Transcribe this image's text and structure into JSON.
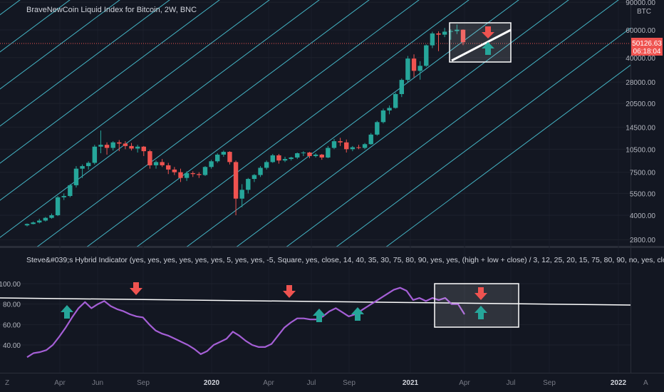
{
  "price_pane": {
    "title": "BraveNewCoin Liquid Index for Bitcoin, 2W, BNC",
    "currency_badge": "BTC",
    "price_scale_ticks": [
      "90000.00",
      "60000.00",
      "40000.00",
      "28000.00",
      "20500.00",
      "14500.00",
      "10500.00",
      "7500.00",
      "5500.00",
      "4000.00",
      "2800.00"
    ],
    "last_price": "50126.63",
    "countdown": "06:18:04",
    "colors": {
      "up": "#26a69a",
      "down": "#ef5350",
      "channel": "#4dd0e1",
      "badge": "#ef5350"
    }
  },
  "indicator_pane": {
    "title": "Steve&#039;s Hybrid Indicator (yes, yes, yes, yes, yes, yes, 5, yes, yes, -5, Square, yes, close, 14, 40, 35, 30, 75, 80, 90, yes, yes, (high + low + close) / 3, 12, 25, 20, 15, 75, 80, 90, no, yes, close, 14, 14, 3, 4, 25, 20, 10, 80, 85, 95, n",
    "scale_ticks": [
      "100.00",
      "80.00",
      "60.00",
      "40.00"
    ],
    "colors": {
      "line": "#a55fd6"
    }
  },
  "time_axis": {
    "labels": [
      "Apr",
      "Jun",
      "Sep",
      "2020",
      "Apr",
      "Jul",
      "Sep",
      "2021",
      "Apr",
      "Jul",
      "Sep",
      "2022"
    ],
    "left_button": "Z",
    "right_button": "A"
  },
  "chart_data": [
    {
      "type": "candlestick",
      "title": "BraveNewCoin Liquid Index for Bitcoin, 2W, BNC",
      "scale": "log",
      "ylim": [
        2500,
        95000
      ],
      "x_range": [
        "2019-02",
        "2022-02"
      ],
      "candles": [
        [
          3450,
          3550,
          3400,
          3520
        ],
        [
          3520,
          3650,
          3500,
          3600
        ],
        [
          3600,
          3800,
          3550,
          3700
        ],
        [
          3700,
          3900,
          3650,
          3850
        ],
        [
          3850,
          4100,
          3800,
          4000
        ],
        [
          4000,
          5300,
          3950,
          5200
        ],
        [
          5200,
          5500,
          5000,
          5300
        ],
        [
          5300,
          6300,
          5200,
          6200
        ],
        [
          6200,
          8200,
          6000,
          7900
        ],
        [
          7900,
          8400,
          6900,
          8200
        ],
        [
          8200,
          8800,
          7800,
          8600
        ],
        [
          8600,
          11200,
          8400,
          10900
        ],
        [
          10900,
          13800,
          9900,
          11200
        ],
        [
          11200,
          11600,
          9700,
          10700
        ],
        [
          10700,
          11800,
          10300,
          11600
        ],
        [
          11600,
          12000,
          10200,
          11400
        ],
        [
          11400,
          11800,
          10500,
          11000
        ],
        [
          11000,
          11500,
          10300,
          10600
        ],
        [
          10600,
          11200,
          10000,
          10900
        ],
        [
          10900,
          11000,
          9500,
          10200
        ],
        [
          10200,
          10400,
          7900,
          8300
        ],
        [
          8300,
          8900,
          7900,
          8700
        ],
        [
          8700,
          9100,
          8100,
          8300
        ],
        [
          8300,
          8600,
          7300,
          7800
        ],
        [
          7800,
          8100,
          7200,
          7500
        ],
        [
          7500,
          7900,
          6500,
          6900
        ],
        [
          6900,
          7600,
          6600,
          7400
        ],
        [
          7400,
          7600,
          7000,
          7300
        ],
        [
          7300,
          7500,
          6900,
          7200
        ],
        [
          7200,
          8200,
          7100,
          8100
        ],
        [
          8100,
          9000,
          7900,
          8800
        ],
        [
          8800,
          9900,
          8600,
          9700
        ],
        [
          9700,
          10300,
          9400,
          10100
        ],
        [
          10100,
          10200,
          8400,
          8700
        ],
        [
          8700,
          8900,
          4000,
          5100
        ],
        [
          5100,
          6300,
          4500,
          5800
        ],
        [
          5800,
          6900,
          5500,
          6800
        ],
        [
          6800,
          7300,
          6500,
          7200
        ],
        [
          7200,
          8200,
          7000,
          8000
        ],
        [
          8000,
          8900,
          7800,
          8700
        ],
        [
          8700,
          9800,
          8600,
          9600
        ],
        [
          9600,
          9800,
          8500,
          8900
        ],
        [
          8900,
          9400,
          8700,
          9100
        ],
        [
          9100,
          9400,
          8900,
          9300
        ],
        [
          9300,
          10000,
          9100,
          9900
        ],
        [
          9900,
          10200,
          9500,
          10000
        ],
        [
          10000,
          10100,
          9200,
          9500
        ],
        [
          9500,
          9900,
          9300,
          9700
        ],
        [
          9700,
          9800,
          9000,
          9300
        ],
        [
          9300,
          11000,
          9200,
          10700
        ],
        [
          10700,
          12200,
          10500,
          11800
        ],
        [
          11800,
          12400,
          11000,
          11600
        ],
        [
          11600,
          12100,
          10000,
          10500
        ],
        [
          10500,
          11000,
          10200,
          10800
        ],
        [
          10800,
          11200,
          10500,
          10700
        ],
        [
          10700,
          11500,
          10500,
          11300
        ],
        [
          11300,
          13300,
          11200,
          13000
        ],
        [
          13000,
          15900,
          12800,
          15600
        ],
        [
          15600,
          19000,
          15300,
          18500
        ],
        [
          18500,
          19900,
          17500,
          19200
        ],
        [
          19200,
          24000,
          19000,
          23500
        ],
        [
          23500,
          29500,
          22500,
          28900
        ],
        [
          28900,
          41000,
          28000,
          39500
        ],
        [
          39500,
          42000,
          30000,
          33000
        ],
        [
          33000,
          38000,
          29000,
          35500
        ],
        [
          35500,
          48500,
          35000,
          47900
        ],
        [
          47900,
          58500,
          46000,
          57000
        ],
        [
          57000,
          58800,
          44000,
          56000
        ],
        [
          56000,
          61800,
          54000,
          58500
        ],
        [
          58500,
          60500,
          52000,
          59000
        ],
        [
          59000,
          64900,
          56500,
          60200
        ],
        [
          60200,
          60500,
          48000,
          50126
        ]
      ],
      "channel_lines": "parallel upward sloping trend channel",
      "annotations": [
        {
          "shape": "box",
          "around": "latest candles",
          "color": "#ffffff"
        },
        {
          "shape": "trendline",
          "color": "#ffffff"
        },
        {
          "shape": "arrow-down",
          "color": "#ef5350"
        },
        {
          "shape": "arrow-up",
          "color": "#26a69a"
        }
      ]
    },
    {
      "type": "line",
      "title": "Steve&#039;s Hybrid Indicator",
      "ylim": [
        22,
        100
      ],
      "values": [
        28,
        32,
        33,
        35,
        40,
        48,
        57,
        67,
        76,
        82,
        76,
        80,
        83,
        78,
        75,
        73,
        70,
        68,
        67,
        60,
        54,
        51,
        49,
        46,
        43,
        40,
        36,
        31,
        34,
        40,
        43,
        46,
        53,
        49,
        44,
        40,
        38,
        38,
        41,
        49,
        57,
        62,
        66,
        66,
        65,
        65,
        68,
        73,
        76,
        72,
        68,
        70,
        74,
        78,
        82,
        86,
        90,
        94,
        96,
        93,
        84,
        86,
        83,
        86,
        84,
        86,
        80,
        80,
        70
      ],
      "horizontal_line": {
        "slope": "slightly down",
        "color": "#ffffff"
      },
      "annotations": [
        {
          "shape": "arrow-up",
          "color": "#26a69a"
        },
        {
          "shape": "arrow-down",
          "color": "#ef5350"
        },
        {
          "shape": "box",
          "color": "#ffffff"
        }
      ]
    }
  ]
}
